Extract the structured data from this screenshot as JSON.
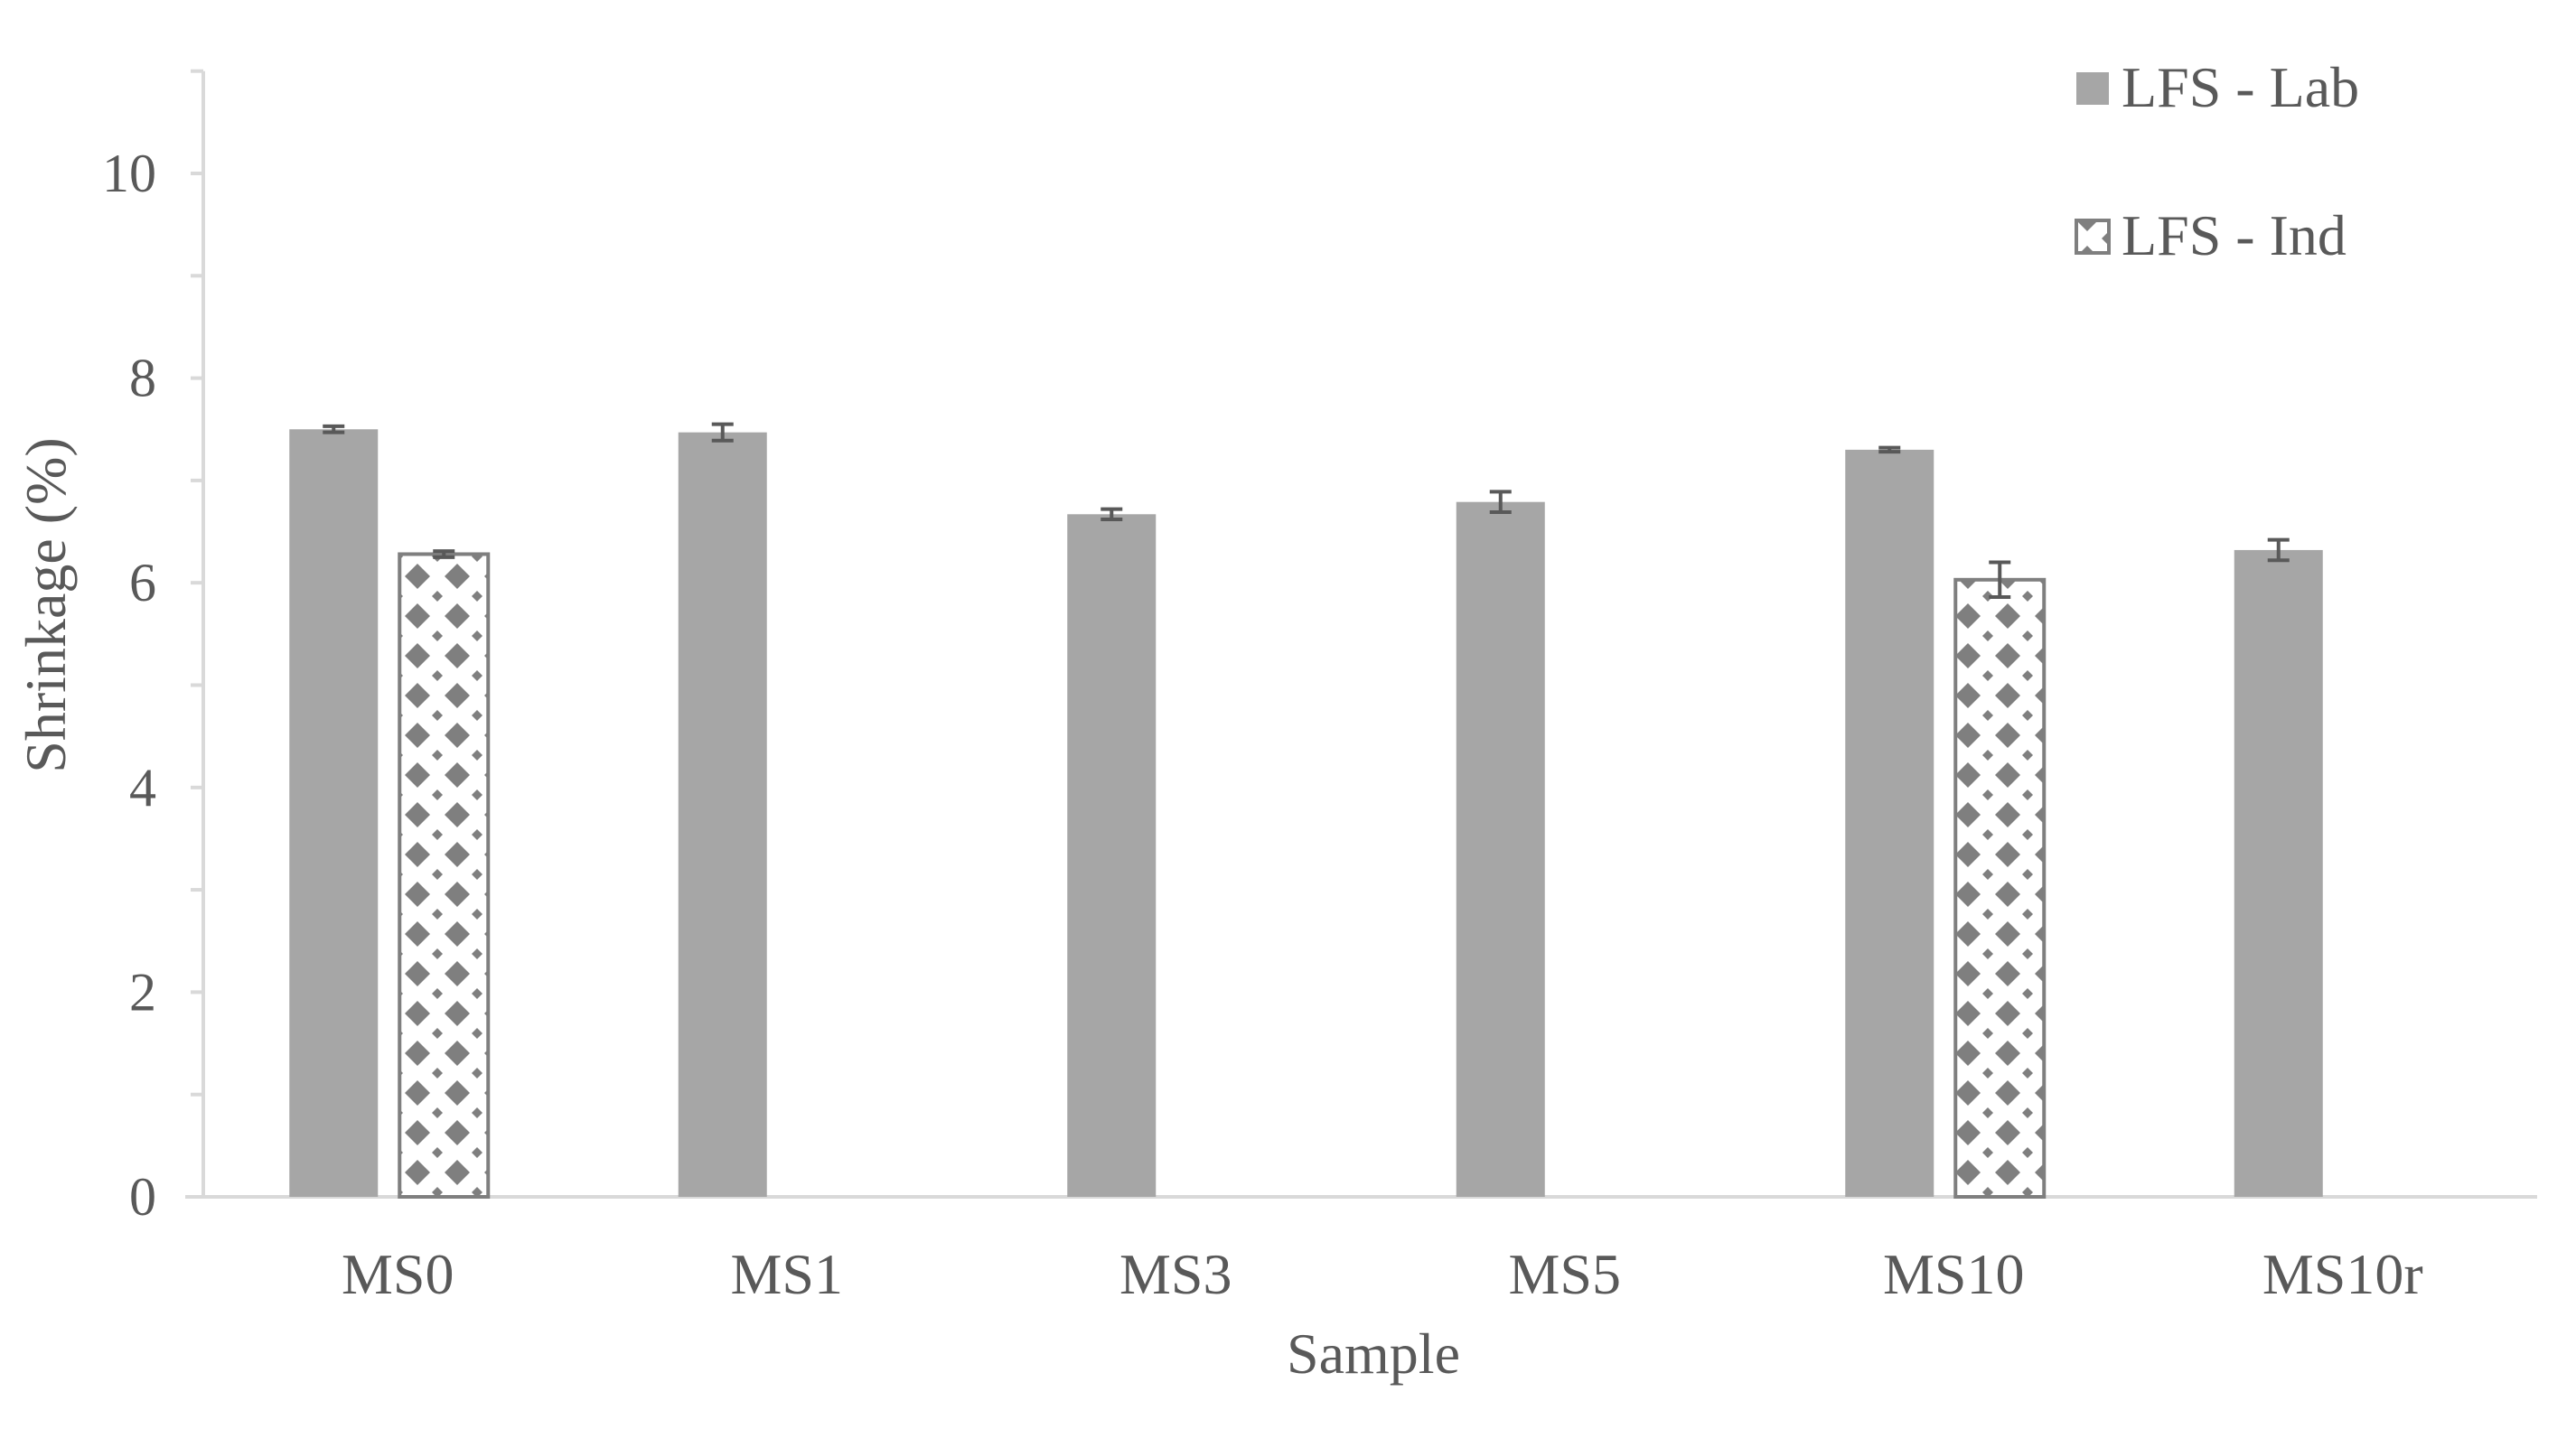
{
  "chart_data": {
    "type": "bar",
    "title": "",
    "xlabel": "Sample",
    "ylabel": "Shrinkage (%)",
    "ylim": [
      0,
      11
    ],
    "yticks": [
      0,
      2,
      4,
      6,
      8,
      10
    ],
    "ytick_labels": [
      "0",
      "2",
      "4",
      "6",
      "8",
      "10"
    ],
    "minor_ytick_step": 1,
    "grid": false,
    "legend_position": "top-right",
    "categories": [
      "MS0",
      "MS1",
      "MS3",
      "MS5",
      "MS10",
      "MS10r"
    ],
    "series": [
      {
        "name": "LFS - Lab",
        "fill": "solid",
        "color": "#a6a6a6",
        "values": [
          7.5,
          7.47,
          6.67,
          6.79,
          7.3,
          6.32
        ],
        "errors": [
          0.03,
          0.08,
          0.05,
          0.1,
          0.02,
          0.1
        ]
      },
      {
        "name": "LFS - Ind",
        "fill": "diamond-pattern",
        "color": "#7f7f7f",
        "values": [
          6.28,
          null,
          null,
          null,
          6.03,
          null
        ],
        "errors": [
          0.03,
          null,
          null,
          null,
          0.17,
          null
        ]
      }
    ],
    "axis_color": "#d9d9d9",
    "text_color": "#595959",
    "error_bar_color": "#595959"
  }
}
